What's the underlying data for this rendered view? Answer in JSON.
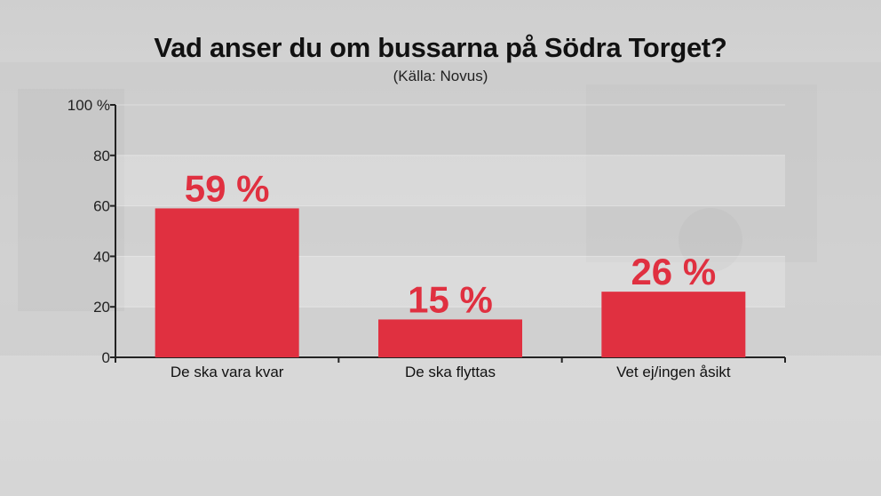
{
  "title": "Vad anser du om bussarna på Södra Torget?",
  "subtitle": "(Källa: Novus)",
  "colors": {
    "bar": "#e03040",
    "label": "#e03040",
    "axis": "#222222"
  },
  "chart_data": {
    "type": "bar",
    "categories": [
      "De ska vara kvar",
      "De ska flyttas",
      "Vet ej/ingen åsikt"
    ],
    "values": [
      59,
      15,
      26
    ],
    "value_labels": [
      "59 %",
      "15 %",
      "26 %"
    ],
    "ylim": [
      0,
      100
    ],
    "yticks": [
      0,
      20,
      40,
      60,
      80,
      100
    ],
    "ytick_labels": [
      "0",
      "20",
      "40",
      "60",
      "80",
      "100 %"
    ],
    "grid": "horizontal bands",
    "legend": "none"
  }
}
